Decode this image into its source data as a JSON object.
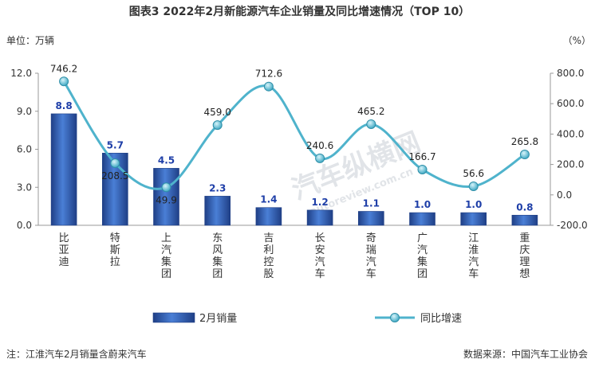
{
  "header": {
    "title": "图表3    2022年2月新能源汽车企业销量及同比增速情况（TOP 10）",
    "unit_left": "单位：万辆",
    "unit_right": "（%）"
  },
  "footer": {
    "note": "注：江淮汽车2月销量含蔚来汽车",
    "source": "数据来源：中国汽车工业协会"
  },
  "watermark": {
    "text": "汽车纵横网",
    "url": "autoreview.com.cn"
  },
  "chart_data": {
    "type": "bar",
    "categories": [
      "比亚迪",
      "特斯拉",
      "上汽集团",
      "东风集团",
      "吉利控股",
      "长安汽车",
      "奇瑞汽车",
      "广汽集团",
      "江淮汽车",
      "重庆理想"
    ],
    "series": [
      {
        "name": "2月销量",
        "type": "bar",
        "axis": "left",
        "values": [
          8.8,
          5.7,
          4.5,
          2.3,
          1.4,
          1.2,
          1.1,
          1.0,
          1.0,
          0.8
        ],
        "labels": [
          "8.8",
          "5.7",
          "4.5",
          "2.3",
          "1.4",
          "1.2",
          "1.1",
          "1.0",
          "1.0",
          "0.8"
        ]
      },
      {
        "name": "同比增速",
        "type": "line",
        "axis": "right",
        "values": [
          746.2,
          208.5,
          49.9,
          459.0,
          712.6,
          240.6,
          465.2,
          166.7,
          56.6,
          265.8
        ],
        "labels": [
          "746.2",
          "208.5",
          "49.9",
          "459.0",
          "712.6",
          "240.6",
          "465.2",
          "166.7",
          "56.6",
          "265.8"
        ]
      }
    ],
    "y_left": {
      "min": 0,
      "max": 12,
      "ticks": [
        "0.0",
        "3.0",
        "6.0",
        "9.0",
        "12.0"
      ],
      "tick_values": [
        0,
        3,
        6,
        9,
        12
      ]
    },
    "y_right": {
      "min": -200,
      "max": 800,
      "ticks": [
        "-200.0",
        "0.0",
        "200.0",
        "400.0",
        "600.0",
        "800.0"
      ],
      "tick_values": [
        -200,
        0,
        200,
        400,
        600,
        800
      ]
    },
    "grid": false,
    "legend": "bottom",
    "colors": {
      "bar": "#3a64b8",
      "bar_dark": "#1f3f86",
      "line": "#4fb3cc",
      "marker": "#5cc0d6",
      "bar_label": "#1f3fa8"
    }
  }
}
